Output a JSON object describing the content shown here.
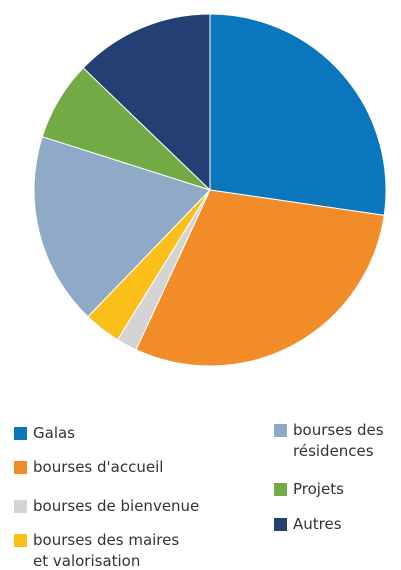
{
  "chart_data": {
    "type": "pie",
    "categories": [
      "Galas",
      "bourses d'accueil",
      "bourses de bienvenue",
      "bourses des maires et valorisation",
      "bourses des résidences",
      "Projets",
      "Autres"
    ],
    "values": [
      27.3,
      29.6,
      1.9,
      3.4,
      17.7,
      7.3,
      12.8
    ],
    "colors": [
      "#0a77bd",
      "#f28c28",
      "#d4d4d4",
      "#fbbf1a",
      "#8faac7",
      "#72ab45",
      "#243f73"
    ]
  }
}
